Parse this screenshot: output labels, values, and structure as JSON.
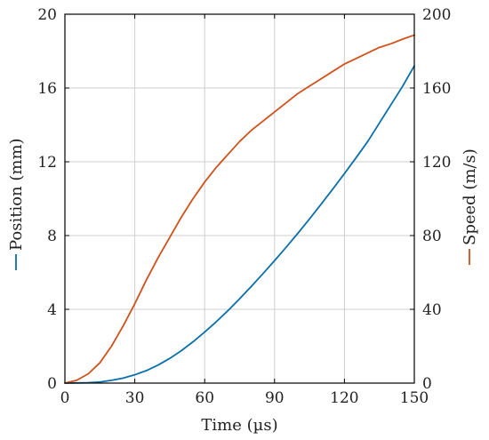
{
  "chart_data": {
    "type": "line",
    "title": "",
    "xlabel": "Time (µs)",
    "ylabel_left": "Position (mm)",
    "ylabel_right": "Speed (m/s)",
    "xlim": [
      0,
      150
    ],
    "ylim_left": [
      0,
      20
    ],
    "ylim_right": [
      0,
      200
    ],
    "x_ticks": [
      0,
      30,
      60,
      90,
      120,
      150
    ],
    "y_ticks_left": [
      0,
      4,
      8,
      12,
      16,
      20
    ],
    "y_ticks_right": [
      0,
      40,
      80,
      120,
      160,
      200
    ],
    "grid": true,
    "series": [
      {
        "axis": "left",
        "color": "#0a6fa9",
        "x": [
          0,
          10,
          15,
          20,
          25,
          30,
          35,
          40,
          45,
          50,
          55,
          60,
          65,
          70,
          75,
          80,
          85,
          90,
          95,
          100,
          105,
          110,
          115,
          120,
          125,
          130,
          135,
          140,
          145,
          150
        ],
        "y": [
          0,
          0.02,
          0.06,
          0.15,
          0.27,
          0.45,
          0.68,
          0.98,
          1.34,
          1.76,
          2.24,
          2.77,
          3.33,
          3.93,
          4.57,
          5.24,
          5.93,
          6.64,
          7.37,
          8.12,
          8.9,
          9.7,
          10.52,
          11.36,
          12.22,
          13.1,
          14.1,
          15.1,
          16.1,
          17.2
        ]
      },
      {
        "axis": "right",
        "color": "#d0511b",
        "x": [
          0,
          5,
          10,
          15,
          20,
          25,
          30,
          35,
          40,
          45,
          50,
          55,
          60,
          65,
          70,
          75,
          80,
          85,
          90,
          95,
          100,
          105,
          110,
          115,
          120,
          125,
          130,
          135,
          140,
          145,
          150
        ],
        "y": [
          0,
          1.5,
          5,
          11,
          20,
          31,
          43,
          56,
          68,
          79,
          90,
          100,
          109,
          117,
          124,
          131,
          137,
          142,
          147,
          152,
          157,
          161,
          165,
          169,
          173,
          176,
          179,
          182,
          184,
          186.5,
          188.7
        ]
      }
    ]
  }
}
